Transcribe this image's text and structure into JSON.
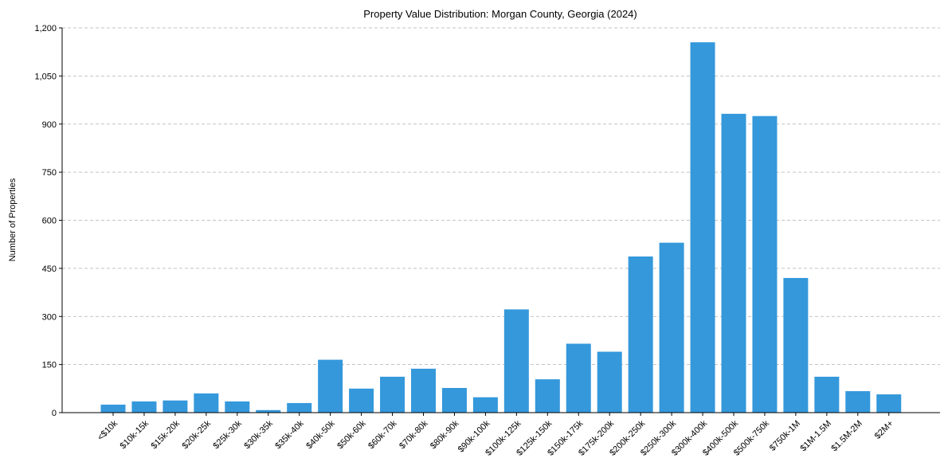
{
  "chart_data": {
    "type": "bar",
    "title": "Property Value Distribution: Morgan County, Georgia (2024)",
    "xlabel": "",
    "ylabel": "Number of Properties",
    "ylim": [
      0,
      1200
    ],
    "yticks": [
      0,
      150,
      300,
      450,
      600,
      750,
      900,
      1050,
      1200
    ],
    "ytick_labels": [
      "0",
      "150",
      "300",
      "450",
      "600",
      "750",
      "900",
      "1,050",
      "1,200"
    ],
    "grid": "horizontal dashed",
    "bar_color": "#3498db",
    "categories": [
      "<$10k",
      "$10k-15k",
      "$15k-20k",
      "$20k-25k",
      "$25k-30k",
      "$30k-35k",
      "$35k-40k",
      "$40k-50k",
      "$50k-60k",
      "$60k-70k",
      "$70k-80k",
      "$80k-90k",
      "$90k-100k",
      "$100k-125k",
      "$125k-150k",
      "$150k-175k",
      "$175k-200k",
      "$200k-250k",
      "$250k-300k",
      "$300k-400k",
      "$400k-500k",
      "$500k-750k",
      "$750k-1M",
      "$1M-1.5M",
      "$1.5M-2M",
      "$2M+"
    ],
    "values": [
      25,
      35,
      38,
      60,
      35,
      8,
      30,
      165,
      75,
      112,
      137,
      77,
      48,
      322,
      104,
      215,
      190,
      487,
      530,
      1155,
      932,
      925,
      420,
      112,
      67,
      57
    ]
  }
}
